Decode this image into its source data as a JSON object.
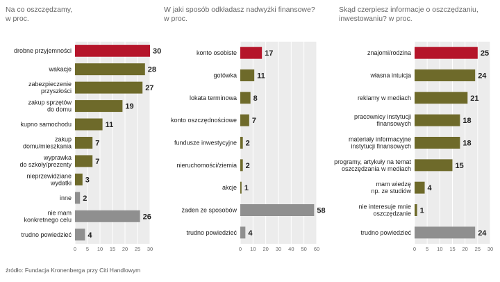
{
  "colors": {
    "highlight": "#b5152a",
    "normal": "#6e6a2a",
    "gray": "#8f8f8f",
    "bg": "#ececec",
    "grid": "#ffffff"
  },
  "source": "źródło: Fundacja Kronenberga przy Citi Handlowym",
  "chart_data": [
    {
      "type": "bar",
      "title": "Na co oszczędzamy, w proc.",
      "title_lines": [
        "Na co oszczędzamy,",
        "w proc."
      ],
      "xlim": [
        0,
        30
      ],
      "ticks": [
        0,
        5,
        10,
        15,
        20,
        25,
        30
      ],
      "categories": [
        [
          "drobne przyjemności"
        ],
        [
          "wakacje"
        ],
        [
          "zabezpieczenie",
          "przyszłości"
        ],
        [
          "zakup sprzętów",
          "do domu"
        ],
        [
          "kupno samochodu"
        ],
        [
          "zakup",
          "domu/mieszkania"
        ],
        [
          "wyprawka",
          "do szkoły/prezenty"
        ],
        [
          "nieprzewidziane",
          "wydatki"
        ],
        [
          "inne"
        ],
        [
          "nie mam",
          "konkretnego celu"
        ],
        [
          "trudno powiedzieć"
        ]
      ],
      "values": [
        30,
        28,
        27,
        19,
        11,
        7,
        7,
        3,
        2,
        26,
        4
      ],
      "styles": [
        "highlight",
        "normal",
        "normal",
        "normal",
        "normal",
        "normal",
        "normal",
        "normal",
        "gray",
        "gray",
        "gray"
      ]
    },
    {
      "type": "bar",
      "title": "W jaki sposób odkładasz nadwyżki finansowe? w proc.",
      "title_lines": [
        "W jaki sposób odkładasz nadwyżki finansowe?",
        "w proc."
      ],
      "xlim": [
        0,
        60
      ],
      "ticks": [
        0,
        10,
        20,
        30,
        40,
        50,
        60
      ],
      "categories": [
        [
          "konto osobiste"
        ],
        [
          "gotówka"
        ],
        [
          "lokata terminowa"
        ],
        [
          "konto oszczędnościowe"
        ],
        [
          "fundusze inwestycyjne"
        ],
        [
          "nieruchomości/ziemia"
        ],
        [
          "akcje"
        ],
        [
          "żaden ze sposobów"
        ],
        [
          "trudno powiedzieć"
        ]
      ],
      "values": [
        17,
        11,
        8,
        7,
        2,
        2,
        1,
        58,
        4
      ],
      "styles": [
        "highlight",
        "normal",
        "normal",
        "normal",
        "normal",
        "normal",
        "normal",
        "gray",
        "gray"
      ]
    },
    {
      "type": "bar",
      "title": "Skąd czerpiesz informacje o oszczędzaniu, inwestowaniu? w proc.",
      "title_lines": [
        "Skąd czerpiesz informacje o oszczędzaniu,",
        "inwestowaniu? w proc."
      ],
      "xlim": [
        0,
        30
      ],
      "ticks": [
        0,
        5,
        10,
        15,
        20,
        25,
        30
      ],
      "categories": [
        [
          "znajomi/rodzina"
        ],
        [
          "własna intuicja"
        ],
        [
          "reklamy w mediach"
        ],
        [
          "pracownicy instytucji",
          "finansowych"
        ],
        [
          "materiały informacyjne",
          "instytucji finansowych"
        ],
        [
          "programy, artykuły na temat",
          "oszczędzania w mediach"
        ],
        [
          "mam wiedzę",
          "np. ze studiów"
        ],
        [
          "nie interesuje mnie",
          "oszczędzanie"
        ],
        [
          "trudno powiedzieć"
        ]
      ],
      "values": [
        25,
        24,
        21,
        18,
        18,
        15,
        4,
        1,
        24
      ],
      "styles": [
        "highlight",
        "normal",
        "normal",
        "normal",
        "normal",
        "normal",
        "normal",
        "normal",
        "gray"
      ]
    }
  ]
}
